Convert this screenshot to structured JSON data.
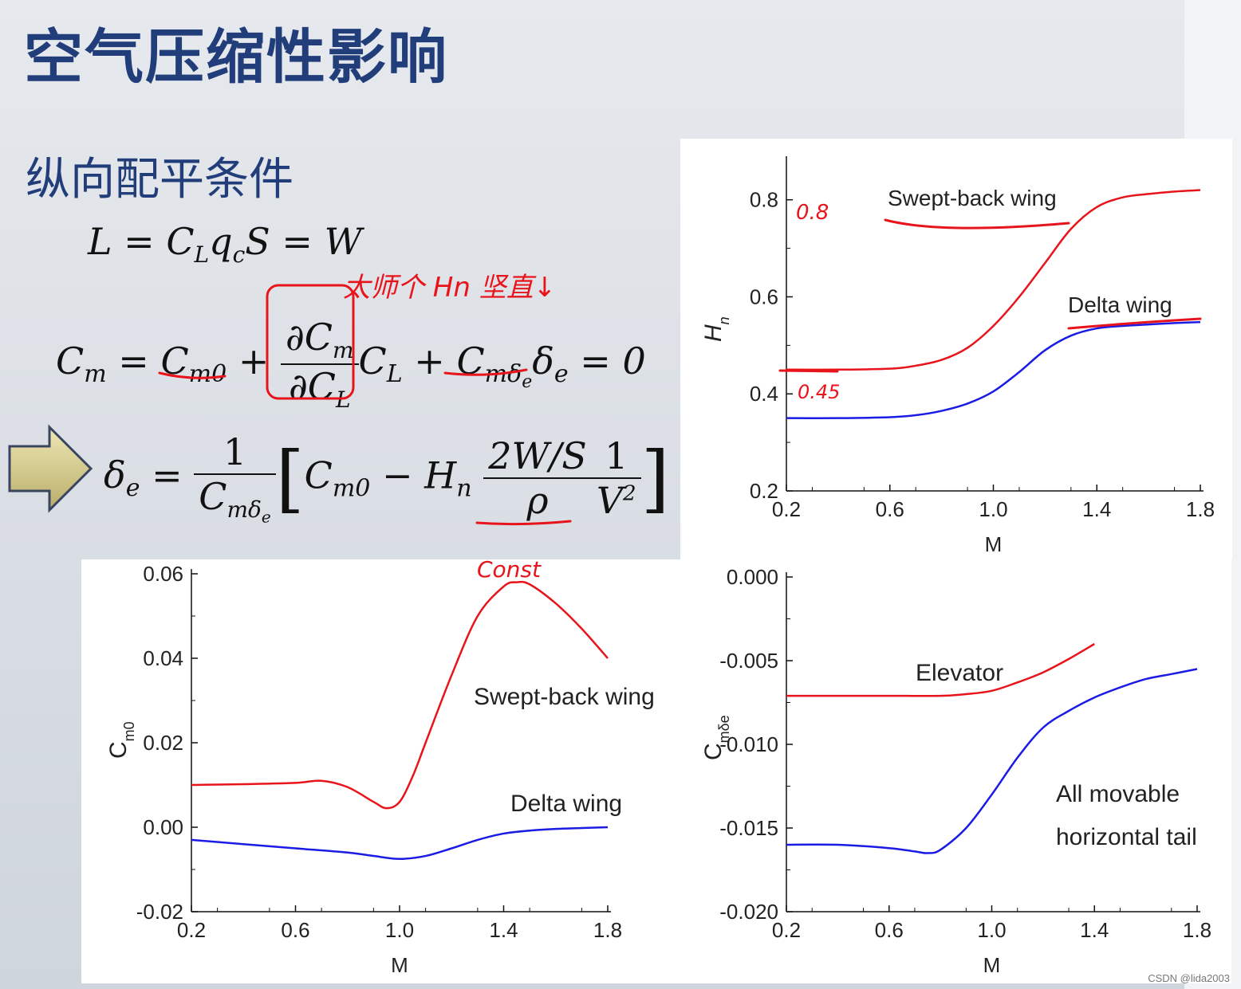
{
  "slide": {
    "title": "空气压缩性影响",
    "subtitle": "纵向配平条件"
  },
  "equations": {
    "eq1": "L = C_L q_c S = W",
    "eq2": "C_m = C_m0 + (∂C_m/∂C_L) C_L + C_mδe δ_e = 0",
    "eq3": "δ_e = 1/C_mδe [ C_m0 − H_n (2W/S)/ρ · 1/V² ]"
  },
  "handwriting": {
    "note_top": "太师个 Hn 坚直↓",
    "note_hn_08": "0.8",
    "note_hn_045": "0.45",
    "note_const": "Const"
  },
  "watermark": "CSDN @lida2003",
  "colors": {
    "red": "#e8141b",
    "blue": "#1b1be6",
    "title": "#213d7a"
  },
  "chart_data": [
    {
      "id": "hn",
      "type": "line",
      "xlabel": "M",
      "ylabel": "H_n",
      "xlim": [
        0.2,
        1.8
      ],
      "ylim": [
        0.2,
        0.88
      ],
      "xticks": [
        "0.2",
        "0.6",
        "1.0",
        "1.4",
        "1.8"
      ],
      "yticks": [
        "0.2",
        "0.4",
        "0.6",
        "0.8"
      ],
      "annotations": [
        "Swept-back wing",
        "Delta wing"
      ],
      "series": [
        {
          "name": "Swept-back wing",
          "color": "#e8141b",
          "x": [
            0.2,
            0.4,
            0.6,
            0.7,
            0.8,
            0.9,
            1.0,
            1.1,
            1.2,
            1.3,
            1.4,
            1.5,
            1.6,
            1.7,
            1.8
          ],
          "y": [
            0.45,
            0.45,
            0.452,
            0.458,
            0.47,
            0.495,
            0.54,
            0.6,
            0.67,
            0.74,
            0.785,
            0.805,
            0.812,
            0.817,
            0.82
          ]
        },
        {
          "name": "Delta wing",
          "color": "#1b1be6",
          "x": [
            0.2,
            0.4,
            0.6,
            0.7,
            0.8,
            0.9,
            1.0,
            1.1,
            1.2,
            1.3,
            1.4,
            1.5,
            1.6,
            1.7,
            1.8
          ],
          "y": [
            0.35,
            0.35,
            0.352,
            0.356,
            0.365,
            0.38,
            0.405,
            0.445,
            0.49,
            0.52,
            0.535,
            0.54,
            0.543,
            0.546,
            0.548
          ]
        }
      ]
    },
    {
      "id": "cm0",
      "type": "line",
      "xlabel": "M",
      "ylabel": "C_m0",
      "xlim": [
        0.2,
        1.8
      ],
      "ylim": [
        -0.02,
        0.06
      ],
      "xticks": [
        "0.2",
        "0.6",
        "1.0",
        "1.4",
        "1.8"
      ],
      "yticks": [
        "-0.02",
        "0.00",
        "0.02",
        "0.04",
        "0.06"
      ],
      "annotations": [
        "Swept-back wing",
        "Delta wing"
      ],
      "series": [
        {
          "name": "Swept-back wing",
          "color": "#e8141b",
          "x": [
            0.2,
            0.4,
            0.6,
            0.7,
            0.8,
            0.9,
            0.95,
            1.0,
            1.05,
            1.1,
            1.2,
            1.3,
            1.4,
            1.45,
            1.5,
            1.6,
            1.7,
            1.8
          ],
          "y": [
            0.01,
            0.0102,
            0.0105,
            0.011,
            0.0095,
            0.006,
            0.0045,
            0.006,
            0.012,
            0.02,
            0.036,
            0.05,
            0.057,
            0.058,
            0.0575,
            0.053,
            0.047,
            0.04
          ]
        },
        {
          "name": "Delta wing",
          "color": "#1b1be6",
          "x": [
            0.2,
            0.4,
            0.6,
            0.8,
            0.9,
            1.0,
            1.1,
            1.2,
            1.3,
            1.4,
            1.5,
            1.6,
            1.7,
            1.8
          ],
          "y": [
            -0.003,
            -0.004,
            -0.005,
            -0.006,
            -0.0068,
            -0.0075,
            -0.0068,
            -0.005,
            -0.003,
            -0.0015,
            -0.0008,
            -0.0004,
            -0.0002,
            0.0
          ]
        }
      ]
    },
    {
      "id": "cmde",
      "type": "line",
      "xlabel": "M",
      "ylabel": "C_mδe",
      "xlim": [
        0.2,
        1.8
      ],
      "ylim": [
        -0.02,
        0.0
      ],
      "xticks": [
        "0.2",
        "0.6",
        "1.0",
        "1.4",
        "1.8"
      ],
      "yticks": [
        "-0.020",
        "-0.015",
        "-0.010",
        "-0.005",
        "0.000"
      ],
      "annotations": [
        "Elevator",
        "All movable",
        "horizontal tail"
      ],
      "series": [
        {
          "name": "Elevator",
          "color": "#e8141b",
          "x": [
            0.2,
            0.4,
            0.6,
            0.8,
            0.9,
            1.0,
            1.1,
            1.2,
            1.3,
            1.4
          ],
          "y": [
            -0.0071,
            -0.0071,
            -0.0071,
            -0.0071,
            -0.007,
            -0.0068,
            -0.0063,
            -0.0057,
            -0.0049,
            -0.004
          ]
        },
        {
          "name": "All movable horizontal tail",
          "color": "#1b1be6",
          "x": [
            0.2,
            0.4,
            0.6,
            0.7,
            0.75,
            0.8,
            0.9,
            1.0,
            1.1,
            1.2,
            1.3,
            1.4,
            1.5,
            1.6,
            1.7,
            1.8
          ],
          "y": [
            -0.016,
            -0.016,
            -0.0162,
            -0.0164,
            -0.0165,
            -0.0163,
            -0.015,
            -0.013,
            -0.0108,
            -0.009,
            -0.008,
            -0.0072,
            -0.0066,
            -0.0061,
            -0.0058,
            -0.0055
          ]
        }
      ]
    }
  ]
}
